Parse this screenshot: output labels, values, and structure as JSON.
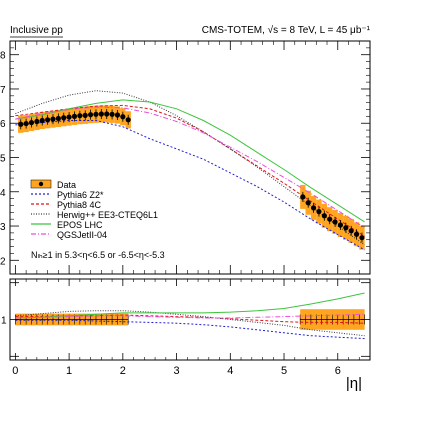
{
  "header": {
    "left": "Inclusive pp",
    "right": "CMS-TOTEM, √s = 8 TeV, L = 45 μb⁻¹"
  },
  "colors": {
    "data_band": "#ffa51f",
    "data_point": "#000000",
    "pythia6": "#1f1fdc",
    "pythia8": "#e0141e",
    "herwig": "#3a3a3a",
    "epos": "#3ec43e",
    "qgsjet": "#e84fe0"
  },
  "chart_data": [
    {
      "type": "line",
      "panel": "main",
      "xlabel": "|η|",
      "ylabel": "",
      "xlim": [
        -0.1,
        6.6
      ],
      "ylim": [
        1.6,
        8.4
      ],
      "y_tick_labels": [
        "8",
        "7",
        "6",
        "5",
        "4",
        "3",
        "2"
      ],
      "y_tick_values": [
        8,
        7,
        6,
        5,
        4,
        3,
        2
      ],
      "x_tick_labels": [
        "0",
        "1",
        "2",
        "3",
        "4",
        "5",
        "6"
      ],
      "x_tick_values": [
        0,
        1,
        2,
        3,
        4,
        5,
        6
      ],
      "annotation": "Nₗₕ≥1 in 5.3<η<6.5 or -6.5<η<-5.3",
      "legend_position": "lower-left",
      "legend": [
        "Data",
        "Pythia6 Z2*",
        "Pythia8 4C",
        "Herwig++ EE3-CTEQ6L1",
        "EPOS LHC",
        "QGSJetII-04"
      ],
      "data": {
        "name": "Data",
        "central_x": [
          0.1,
          0.2,
          0.3,
          0.4,
          0.5,
          0.6,
          0.7,
          0.8,
          0.9,
          1.0,
          1.1,
          1.2,
          1.3,
          1.4,
          1.5,
          1.6,
          1.7,
          1.8,
          1.9,
          2.0,
          2.1
        ],
        "central_y": [
          5.97,
          5.99,
          6.02,
          6.05,
          6.08,
          6.1,
          6.12,
          6.14,
          6.16,
          6.18,
          6.2,
          6.22,
          6.23,
          6.25,
          6.26,
          6.27,
          6.27,
          6.26,
          6.24,
          6.19,
          6.1
        ],
        "central_band": [
          0.25,
          0.25,
          0.25,
          0.25,
          0.25,
          0.25,
          0.25,
          0.25,
          0.25,
          0.25,
          0.25,
          0.25,
          0.25,
          0.25,
          0.25,
          0.25,
          0.25,
          0.25,
          0.25,
          0.25,
          0.25
        ],
        "forward_x": [
          5.35,
          5.45,
          5.55,
          5.65,
          5.75,
          5.85,
          5.95,
          6.05,
          6.15,
          6.25,
          6.35,
          6.45
        ],
        "forward_y": [
          3.85,
          3.68,
          3.53,
          3.42,
          3.3,
          3.2,
          3.12,
          3.03,
          2.95,
          2.86,
          2.76,
          2.66
        ],
        "forward_band": [
          0.35,
          0.35,
          0.35,
          0.35,
          0.35,
          0.35,
          0.35,
          0.35,
          0.35,
          0.35,
          0.35,
          0.35
        ]
      },
      "x": [
        0.0,
        0.5,
        1.0,
        1.5,
        2.0,
        2.5,
        3.0,
        3.5,
        4.0,
        4.5,
        5.0,
        5.5,
        6.0,
        6.5
      ],
      "series": [
        {
          "name": "Pythia6 Z2*",
          "values": [
            5.95,
            6.02,
            6.08,
            6.08,
            5.9,
            5.55,
            5.25,
            4.95,
            4.55,
            4.15,
            3.7,
            3.2,
            2.75,
            2.3
          ]
        },
        {
          "name": "Pythia8 4C",
          "values": [
            6.22,
            6.32,
            6.42,
            6.5,
            6.52,
            6.42,
            6.15,
            5.75,
            5.25,
            4.75,
            4.25,
            3.72,
            3.2,
            2.7
          ]
        },
        {
          "name": "Herwig++ EE3-CTEQ6L1",
          "values": [
            6.28,
            6.58,
            6.82,
            6.95,
            6.88,
            6.62,
            6.22,
            5.75,
            5.25,
            4.72,
            4.15,
            3.58,
            3.0,
            2.45
          ]
        },
        {
          "name": "EPOS LHC",
          "values": [
            6.12,
            6.25,
            6.42,
            6.58,
            6.68,
            6.62,
            6.42,
            6.08,
            5.65,
            5.15,
            4.65,
            4.12,
            3.62,
            3.12
          ]
        },
        {
          "name": "QGSJetII-04",
          "values": [
            6.12,
            6.27,
            6.4,
            6.47,
            6.45,
            6.3,
            6.05,
            5.72,
            5.3,
            4.88,
            4.42,
            3.95,
            3.45,
            2.95
          ]
        }
      ]
    },
    {
      "type": "line",
      "panel": "ratio",
      "xlabel": "|η|",
      "ylabel": "",
      "xlim": [
        -0.1,
        6.6
      ],
      "ylim": [
        0.45,
        1.55
      ],
      "y_tick_labels": [
        "1",
        "",
        ""
      ],
      "y_tick_values": [
        1.0,
        1.5,
        0.5
      ],
      "x": [
        0.0,
        0.5,
        1.0,
        1.5,
        2.0,
        2.5,
        3.0,
        3.5,
        4.0,
        4.5,
        5.0,
        5.5,
        6.0,
        6.5
      ],
      "data_band": {
        "central_x": [
          0.0,
          2.1
        ],
        "central_range": [
          0.92,
          1.08
        ],
        "forward_x": [
          5.3,
          6.5
        ],
        "forward_range": [
          0.86,
          1.14
        ]
      },
      "series": [
        {
          "name": "Pythia6 Z2*",
          "values": [
            0.99,
            0.99,
            0.99,
            0.98,
            0.97,
            0.96,
            0.95,
            0.93,
            0.9,
            0.86,
            0.82,
            0.78,
            0.76,
            0.74
          ]
        },
        {
          "name": "Pythia8 4C",
          "values": [
            1.04,
            1.04,
            1.05,
            1.05,
            1.06,
            1.05,
            1.04,
            1.03,
            1.01,
            0.99,
            0.97,
            0.96,
            0.96,
            0.95
          ]
        },
        {
          "name": "Herwig++ EE3-CTEQ6L1",
          "values": [
            1.05,
            1.08,
            1.11,
            1.12,
            1.12,
            1.1,
            1.07,
            1.04,
            1.0,
            0.96,
            0.92,
            0.86,
            0.82,
            0.78
          ]
        },
        {
          "name": "EPOS LHC",
          "values": [
            1.02,
            1.03,
            1.05,
            1.07,
            1.09,
            1.09,
            1.09,
            1.09,
            1.1,
            1.12,
            1.15,
            1.21,
            1.28,
            1.36
          ]
        },
        {
          "name": "QGSJetII-04",
          "values": [
            1.02,
            1.03,
            1.04,
            1.05,
            1.05,
            1.04,
            1.03,
            1.02,
            1.02,
            1.03,
            1.04,
            1.05,
            1.06,
            1.07
          ]
        }
      ]
    }
  ]
}
